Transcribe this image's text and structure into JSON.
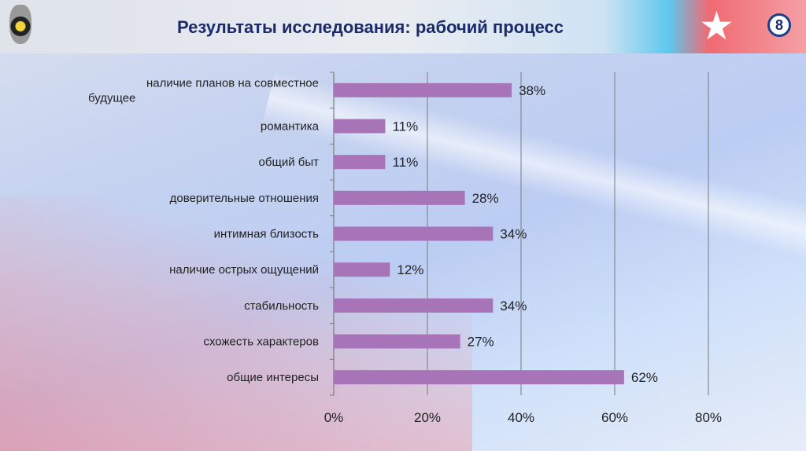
{
  "header": {
    "title": "Результаты исследования: рабочий процесс",
    "slide_number": "8"
  },
  "colors": {
    "bar": "#a774b8",
    "title": "#1b2a6b"
  },
  "chart_data": {
    "type": "bar",
    "orientation": "horizontal",
    "categories": [
      "наличие планов на совместное будущее",
      "романтика",
      "общий быт",
      "доверительные отношения",
      "интимная близость",
      "наличие острых ощущений",
      "стабильность",
      "схожесть характеров",
      "общие интересы"
    ],
    "category_lines": [
      [
        "наличие планов на совместное",
        "будущее"
      ],
      [
        "романтика"
      ],
      [
        "общий быт"
      ],
      [
        "доверительные отношения"
      ],
      [
        "интимная близость"
      ],
      [
        "наличие острых ощущений"
      ],
      [
        "стабильность"
      ],
      [
        "схожесть характеров"
      ],
      [
        "общие интересы"
      ]
    ],
    "values": [
      38,
      11,
      11,
      28,
      34,
      12,
      34,
      27,
      62
    ],
    "labels": [
      "38%",
      "11%",
      "11%",
      "28%",
      "34%",
      "12%",
      "34%",
      "27%",
      "62%"
    ],
    "xticks": [
      "0%",
      "20%",
      "40%",
      "60%",
      "80%"
    ],
    "xtick_values": [
      0,
      20,
      40,
      60,
      80
    ],
    "xlim": [
      0,
      80
    ],
    "grid": true,
    "title": "",
    "xlabel": "",
    "ylabel": ""
  }
}
